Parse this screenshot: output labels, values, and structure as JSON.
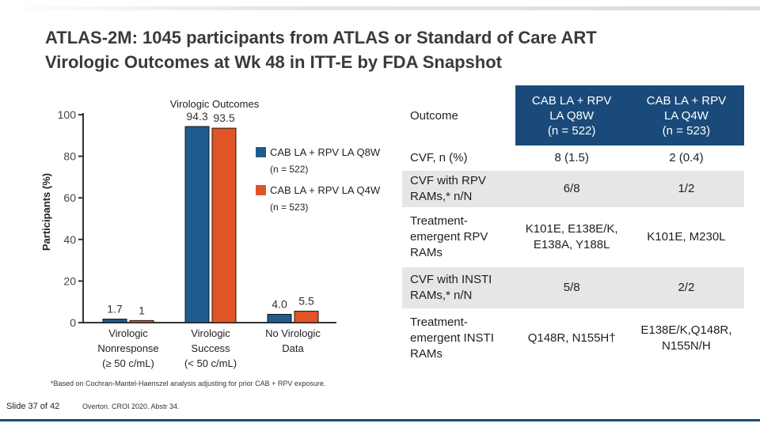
{
  "title": {
    "line1": "ATLAS-2M: 1045 participants from ATLAS or Standard of Care ART",
    "line2": "Virologic Outcomes at Wk 48 in ITT-E by FDA Snapshot"
  },
  "chart_data": {
    "type": "bar",
    "title": "Virologic Outcomes",
    "ylabel": "Participants (%)",
    "xlabel": "",
    "ylim": [
      0,
      100
    ],
    "yticks": [
      0,
      20,
      40,
      60,
      80,
      100
    ],
    "categories": [
      [
        "Virologic",
        "Nonresponse",
        "(≥ 50 c/mL)"
      ],
      [
        "Virologic",
        "Success",
        "(< 50 c/mL)"
      ],
      [
        "No Virologic",
        "Data"
      ]
    ],
    "series": [
      {
        "name": "CAB LA + RPV LA Q8W",
        "sub": "(n = 522)",
        "color": "#1f5b8c",
        "values": [
          1.7,
          94.3,
          4.0
        ],
        "labels": [
          "1.7",
          "94.3",
          "4.0"
        ]
      },
      {
        "name": "CAB LA + RPV LA Q4W",
        "sub": "(n = 523)",
        "color": "#e05426",
        "values": [
          1.0,
          93.5,
          5.5
        ],
        "labels": [
          "1",
          "93.5",
          "5.5"
        ]
      }
    ]
  },
  "table": {
    "headers": [
      {
        "lines": [
          "Outcome"
        ]
      },
      {
        "lines": [
          "CAB LA + RPV",
          "LA Q8W",
          "(n = 522)"
        ]
      },
      {
        "lines": [
          "CAB LA + RPV",
          "LA Q4W",
          "(n = 523)"
        ]
      }
    ],
    "rows": [
      {
        "outcome": [
          "CVF, n (%)"
        ],
        "q8w": [
          "8 (1.5)"
        ],
        "q4w": [
          "2 (0.4)"
        ]
      },
      {
        "outcome": [
          "CVF with RPV",
          "RAMs,* n/N"
        ],
        "q8w": [
          "6/8"
        ],
        "q4w": [
          "1/2"
        ]
      },
      {
        "outcome": [
          "Treatment-",
          "emergent RPV",
          "RAMs"
        ],
        "q8w": [
          "K101E, E138E/K,",
          "E138A, Y188L"
        ],
        "q4w": [
          "K101E, M230L"
        ]
      },
      {
        "outcome": [
          "CVF with INSTI",
          "RAMs,* n/N"
        ],
        "q8w": [
          "5/8"
        ],
        "q4w": [
          "2/2"
        ]
      },
      {
        "outcome": [
          "Treatment-",
          "emergent INSTI",
          "RAMs"
        ],
        "q8w": [
          "Q148R, N155H†"
        ],
        "q4w": [
          "E138E/K,Q148R,",
          "N155N/H"
        ]
      }
    ]
  },
  "footnote": "*Based on Cochran-Mantel-Haenszel analysis adjusting for prior CAB + RPV exposure.",
  "slide_number": "Slide 37 of 42",
  "citation": "Overton. CROI 2020. Abstr 34."
}
